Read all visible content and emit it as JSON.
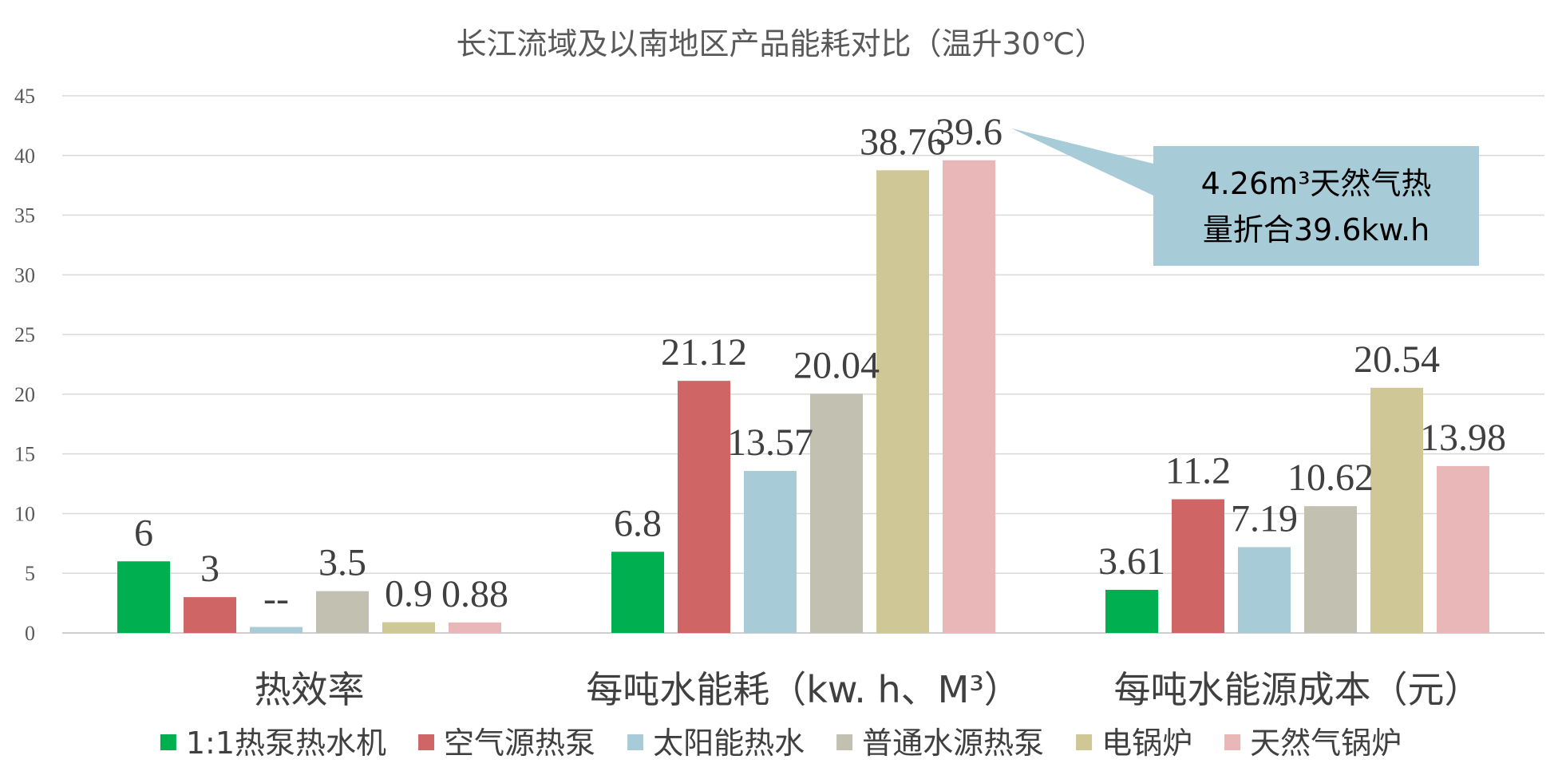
{
  "chart_data": {
    "type": "bar",
    "title": "长江流域及以南地区产品能耗对比（温升30℃）",
    "xlabel": "",
    "ylabel": "",
    "ylim": [
      0,
      45
    ],
    "yticks": [
      0,
      5,
      10,
      15,
      20,
      25,
      30,
      35,
      40,
      45
    ],
    "grid": true,
    "legend_position": "bottom",
    "categories": [
      "热效率",
      "每吨水能耗（kw. h、M³）",
      "每吨水能源成本（元）"
    ],
    "series": [
      {
        "name": "1:1热泵热水机",
        "color": "#00b050",
        "values": [
          6,
          6.8,
          3.61
        ],
        "labels": [
          "6",
          "6.8",
          "3.61"
        ]
      },
      {
        "name": "空气源热泵",
        "color": "#d06565",
        "values": [
          3,
          21.12,
          11.2
        ],
        "labels": [
          "3",
          "21.12",
          "11.2"
        ]
      },
      {
        "name": "太阳能热水",
        "color": "#a8ccd7",
        "values": [
          0.5,
          13.57,
          7.19
        ],
        "labels": [
          "--",
          "13.57",
          "7.19"
        ]
      },
      {
        "name": "普通水源热泵",
        "color": "#c2c0b0",
        "values": [
          3.5,
          20.04,
          10.62
        ],
        "labels": [
          "3.5",
          "20.04",
          "10.62"
        ]
      },
      {
        "name": "电锅炉",
        "color": "#cfc896",
        "values": [
          0.9,
          38.76,
          20.54
        ],
        "labels": [
          "0.9",
          "38.76",
          "20.54"
        ]
      },
      {
        "name": "天然气锅炉",
        "color": "#e9b7b8",
        "values": [
          0.88,
          39.6,
          13.98
        ],
        "labels": [
          "0.88",
          "39.6",
          "13.98"
        ]
      }
    ],
    "annotation": {
      "lines": [
        "4.26m³天然气热",
        "量折合39.6kw.h"
      ],
      "fill": "#a8ccd7",
      "target_series": 5,
      "target_category": 1
    }
  }
}
